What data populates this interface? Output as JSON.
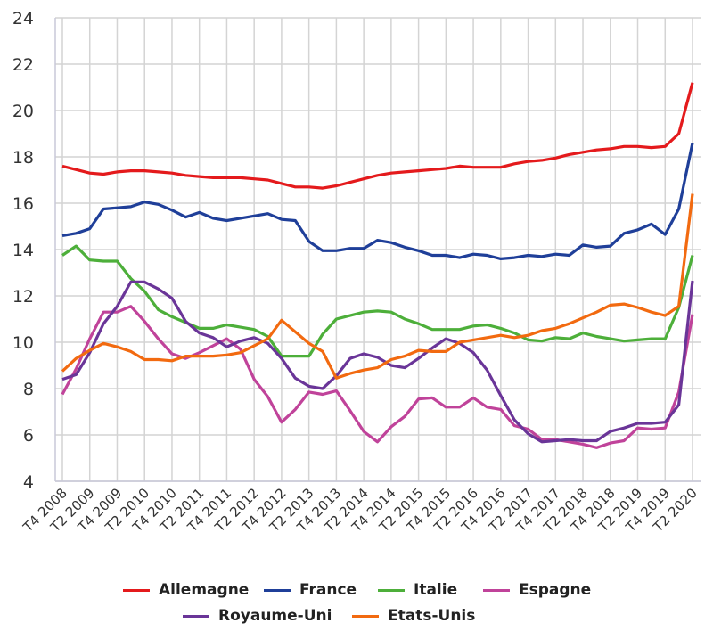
{
  "chart_data": {
    "type": "line",
    "title": "",
    "xlabel": "",
    "ylabel": "",
    "ylim": [
      4,
      24
    ],
    "yticks": [
      4,
      6,
      8,
      10,
      12,
      14,
      16,
      18,
      20,
      22,
      24
    ],
    "grid": true,
    "legend_position": "bottom",
    "x_tick_labels": [
      "T4 2008",
      "T2 2009",
      "T4 2009",
      "T2 2010",
      "T4 2010",
      "T2 2011",
      "T4 2011",
      "T2 2012",
      "T4 2012",
      "T2 2013",
      "T4 2013",
      "T2 2014",
      "T4 2014",
      "T2 2015",
      "T4 2015",
      "T2 2016",
      "T4 2016",
      "T2 2017",
      "T4 2017",
      "T2 2018",
      "T4 2018",
      "T2 2019",
      "T4 2019",
      "T2 2020"
    ],
    "x_note": "quarterly points from T4 2008 to T2 2020 (47 quarters)",
    "series": [
      {
        "name": "Allemagne",
        "color": "#e41a1c",
        "values": [
          17.6,
          17.45,
          17.3,
          17.25,
          17.35,
          17.4,
          17.4,
          17.35,
          17.3,
          17.2,
          17.15,
          17.1,
          17.1,
          17.1,
          17.05,
          17.0,
          16.85,
          16.7,
          16.7,
          16.65,
          16.75,
          16.9,
          17.05,
          17.2,
          17.3,
          17.35,
          17.4,
          17.45,
          17.5,
          17.6,
          17.55,
          17.55,
          17.55,
          17.7,
          17.8,
          17.85,
          17.95,
          18.1,
          18.2,
          18.3,
          18.35,
          18.45,
          18.45,
          18.4,
          18.45,
          19.0,
          21.2
        ]
      },
      {
        "name": "France",
        "color": "#1f3f99",
        "values": [
          14.6,
          14.7,
          14.9,
          15.75,
          15.8,
          15.85,
          16.05,
          15.95,
          15.7,
          15.4,
          15.6,
          15.35,
          15.25,
          15.35,
          15.45,
          15.55,
          15.3,
          15.25,
          14.35,
          13.95,
          13.95,
          14.05,
          14.05,
          14.4,
          14.3,
          14.1,
          13.95,
          13.75,
          13.75,
          13.65,
          13.8,
          13.75,
          13.6,
          13.65,
          13.75,
          13.7,
          13.8,
          13.75,
          14.2,
          14.1,
          14.15,
          14.7,
          14.85,
          15.1,
          14.65,
          15.75,
          18.6
        ]
      },
      {
        "name": "Italie",
        "color": "#4daf3a",
        "values": [
          13.75,
          14.15,
          13.55,
          13.5,
          13.5,
          12.75,
          12.2,
          11.4,
          11.1,
          10.85,
          10.6,
          10.6,
          10.75,
          10.65,
          10.55,
          10.25,
          9.4,
          9.4,
          9.4,
          10.35,
          11.0,
          11.15,
          11.3,
          11.35,
          11.3,
          11.0,
          10.8,
          10.55,
          10.55,
          10.55,
          10.7,
          10.75,
          10.6,
          10.4,
          10.1,
          10.05,
          10.2,
          10.15,
          10.4,
          10.25,
          10.15,
          10.05,
          10.1,
          10.15,
          10.15,
          11.5,
          13.75
        ]
      },
      {
        "name": "Espagne",
        "color": "#c0439a",
        "values": [
          7.75,
          8.85,
          10.15,
          11.3,
          11.3,
          11.55,
          10.9,
          10.15,
          9.5,
          9.3,
          9.55,
          9.85,
          10.15,
          9.7,
          8.4,
          7.65,
          6.55,
          7.1,
          7.85,
          7.75,
          7.9,
          7.05,
          6.15,
          5.7,
          6.35,
          6.8,
          7.55,
          7.6,
          7.2,
          7.2,
          7.6,
          7.2,
          7.1,
          6.4,
          6.25,
          5.8,
          5.8,
          5.7,
          5.6,
          5.45,
          5.65,
          5.75,
          6.3,
          6.25,
          6.3,
          7.85,
          11.2
        ]
      },
      {
        "name": "Royaume-Uni",
        "color": "#6a3598",
        "values": [
          8.4,
          8.6,
          9.55,
          10.8,
          11.55,
          12.6,
          12.6,
          12.3,
          11.9,
          10.9,
          10.4,
          10.2,
          9.8,
          10.05,
          10.2,
          9.95,
          9.3,
          8.45,
          8.1,
          8.0,
          8.55,
          9.3,
          9.5,
          9.35,
          9.0,
          8.9,
          9.3,
          9.75,
          10.15,
          9.95,
          9.55,
          8.8,
          7.7,
          6.65,
          6.05,
          5.7,
          5.75,
          5.8,
          5.75,
          5.75,
          6.15,
          6.3,
          6.5,
          6.5,
          6.55,
          7.3,
          12.65
        ]
      },
      {
        "name": "Etats-Unis",
        "color": "#f26a10",
        "values": [
          8.75,
          9.3,
          9.65,
          9.95,
          9.8,
          9.6,
          9.25,
          9.25,
          9.2,
          9.4,
          9.4,
          9.4,
          9.45,
          9.55,
          9.85,
          10.15,
          10.95,
          10.45,
          9.95,
          9.6,
          8.45,
          8.65,
          8.8,
          8.9,
          9.25,
          9.4,
          9.65,
          9.6,
          9.6,
          10.0,
          10.1,
          10.2,
          10.3,
          10.2,
          10.3,
          10.5,
          10.6,
          10.8,
          11.05,
          11.3,
          11.6,
          11.65,
          11.5,
          11.3,
          11.15,
          11.55,
          16.4
        ]
      }
    ]
  }
}
